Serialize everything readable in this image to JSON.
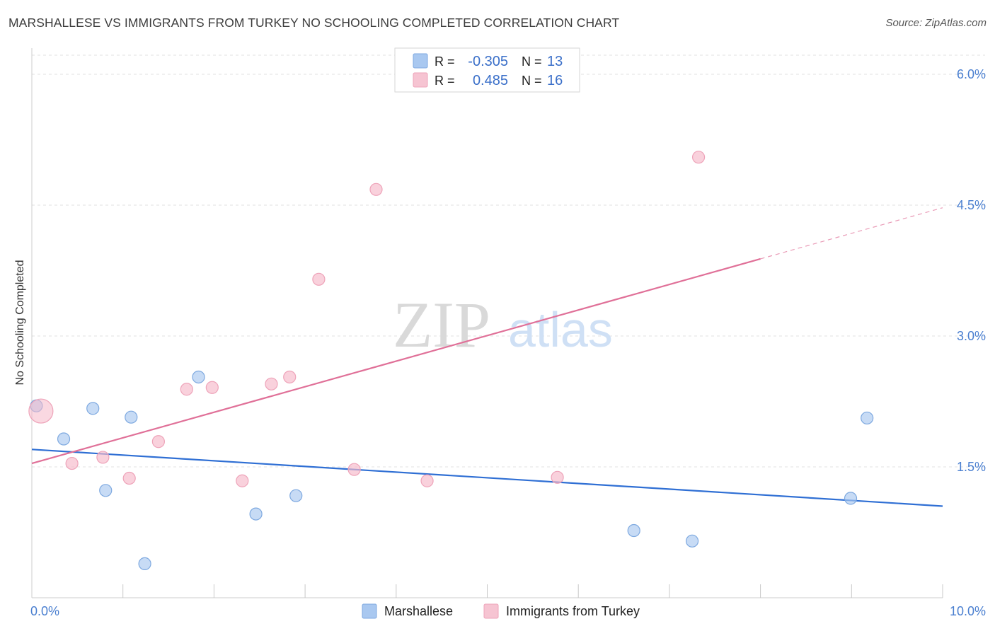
{
  "header": {
    "title": "MARSHALLESE VS IMMIGRANTS FROM TURKEY NO SCHOOLING COMPLETED CORRELATION CHART",
    "source": "Source: ZipAtlas.com"
  },
  "watermark": {
    "part1": "ZIP",
    "part2": "atlas"
  },
  "legend": {
    "rows": [
      {
        "r_label": "R =",
        "r_value": "-0.305",
        "n_label": "N =",
        "n_value": "13",
        "color": "#a9c8f0"
      },
      {
        "r_label": "R =",
        "r_value": "0.485",
        "n_label": "N =",
        "n_value": "16",
        "color": "#f6b8c9"
      }
    ]
  },
  "bottom_legend": {
    "items": [
      {
        "label": "Marshallese",
        "color": "#a9c8f0"
      },
      {
        "label": "Immigrants from Turkey",
        "color": "#f6b8c9"
      }
    ]
  },
  "chart_data": {
    "type": "scatter",
    "ylabel": "No Schooling Completed",
    "xlim": [
      0,
      10
    ],
    "ylim": [
      0,
      6.3
    ],
    "x_tick_labels": [
      {
        "value": 0,
        "label": "0.0%"
      },
      {
        "value": 10,
        "label": "10.0%"
      }
    ],
    "y_tick_labels": [
      {
        "value": 1.5,
        "label": "1.5%"
      },
      {
        "value": 3.0,
        "label": "3.0%"
      },
      {
        "value": 4.5,
        "label": "4.5%"
      },
      {
        "value": 6.0,
        "label": "6.0%"
      }
    ],
    "grid": "horizontal dashed",
    "legend_placement": "top-center",
    "series": [
      {
        "name": "Marshallese",
        "color": "#a9c8f0",
        "line_color": "#2f6fd4",
        "points": [
          {
            "x": 0.05,
            "y": 2.2
          },
          {
            "x": 0.35,
            "y": 1.82
          },
          {
            "x": 0.67,
            "y": 2.17
          },
          {
            "x": 0.81,
            "y": 1.23
          },
          {
            "x": 1.09,
            "y": 2.07
          },
          {
            "x": 1.24,
            "y": 0.39
          },
          {
            "x": 1.83,
            "y": 2.53
          },
          {
            "x": 2.46,
            "y": 0.96
          },
          {
            "x": 2.9,
            "y": 1.17
          },
          {
            "x": 6.61,
            "y": 0.77
          },
          {
            "x": 7.25,
            "y": 0.65
          },
          {
            "x": 8.99,
            "y": 1.14
          },
          {
            "x": 9.17,
            "y": 2.06
          }
        ],
        "trend": {
          "x": [
            0,
            10
          ],
          "y": [
            1.7,
            1.05
          ],
          "solid_until": 10
        }
      },
      {
        "name": "Immigrants from Turkey",
        "color": "#f6b8c9",
        "line_color": "#e07098",
        "points": [
          {
            "x": 0.1,
            "y": 2.14,
            "large": true
          },
          {
            "x": 0.44,
            "y": 1.54
          },
          {
            "x": 0.78,
            "y": 1.61
          },
          {
            "x": 1.07,
            "y": 1.37
          },
          {
            "x": 1.39,
            "y": 1.79
          },
          {
            "x": 1.7,
            "y": 2.39
          },
          {
            "x": 1.98,
            "y": 2.41
          },
          {
            "x": 2.31,
            "y": 1.34
          },
          {
            "x": 2.63,
            "y": 2.45
          },
          {
            "x": 2.83,
            "y": 2.53
          },
          {
            "x": 3.15,
            "y": 3.65
          },
          {
            "x": 3.54,
            "y": 1.47
          },
          {
            "x": 3.78,
            "y": 4.68
          },
          {
            "x": 4.34,
            "y": 1.34
          },
          {
            "x": 5.77,
            "y": 1.38
          },
          {
            "x": 7.32,
            "y": 5.05
          }
        ],
        "trend": {
          "x": [
            0,
            10
          ],
          "y": [
            1.54,
            4.47
          ],
          "solid_until": 8.0
        }
      }
    ]
  }
}
